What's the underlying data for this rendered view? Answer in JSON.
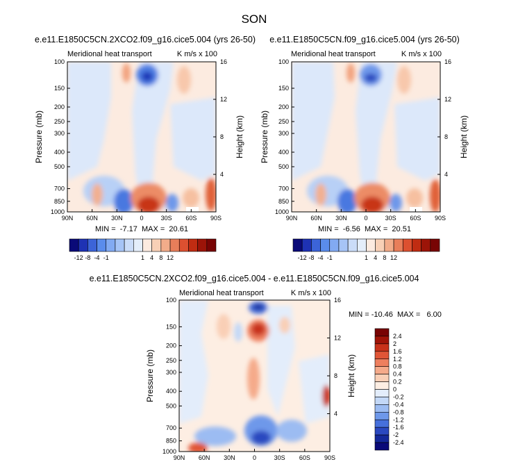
{
  "page_title": "SON",
  "chart_data": [
    {
      "type": "heatmap",
      "title": "e.e11.E1850C5CN.2XCO2.f09_g16.cice5.004 (yrs 26-50)",
      "left_label": "Meridional heat transport",
      "units_label": "K m/s x 100",
      "xlabel": "",
      "ylabel": "Pressure (mb)",
      "ylabel_right": "Height (km)",
      "x_ticks": [
        "90N",
        "60N",
        "30N",
        "0",
        "30S",
        "60S",
        "90S"
      ],
      "y_ticks": [
        "100",
        "150",
        "200",
        "250",
        "300",
        "400",
        "500",
        "700",
        "850",
        "1000"
      ],
      "y_right_ticks": [
        "16",
        "12",
        "8",
        "4"
      ],
      "stats_label": "MIN =  -7.17  MAX =  20.61",
      "colorbar_labels": [
        "-12",
        "-8",
        "-4",
        "-1",
        "1",
        "4",
        "8",
        "12"
      ],
      "colorbar_colors": [
        "#0a0a78",
        "#1e32b4",
        "#3c64d8",
        "#5a8cec",
        "#82aaf2",
        "#a6c4f6",
        "#cadcf8",
        "#e4eefa",
        "#fcebe0",
        "#f8d0b6",
        "#f2ac8a",
        "#e87e5a",
        "#dc5030",
        "#c02c12",
        "#9c1408",
        "#780404"
      ]
    },
    {
      "type": "heatmap",
      "title": "e.e11.E1850C5CN.f09_g16.cice5.004 (yrs 26-50)",
      "left_label": "Meridional heat transport",
      "units_label": "K m/s x 100",
      "xlabel": "",
      "ylabel": "Pressure (mb)",
      "ylabel_right": "Height (km)",
      "x_ticks": [
        "90N",
        "60N",
        "30N",
        "0",
        "30S",
        "60S",
        "90S"
      ],
      "y_ticks": [
        "100",
        "150",
        "200",
        "250",
        "300",
        "400",
        "500",
        "700",
        "850",
        "1000"
      ],
      "y_right_ticks": [
        "16",
        "12",
        "8",
        "4"
      ],
      "stats_label": "MIN =  -6.56  MAX =  20.51",
      "colorbar_labels": [
        "-12",
        "-8",
        "-4",
        "-1",
        "1",
        "4",
        "8",
        "12"
      ],
      "colorbar_colors": [
        "#0a0a78",
        "#1e32b4",
        "#3c64d8",
        "#5a8cec",
        "#82aaf2",
        "#a6c4f6",
        "#cadcf8",
        "#e4eefa",
        "#fcebe0",
        "#f8d0b6",
        "#f2ac8a",
        "#e87e5a",
        "#dc5030",
        "#c02c12",
        "#9c1408",
        "#780404"
      ]
    },
    {
      "type": "heatmap",
      "title": "e.e11.E1850C5CN.2XCO2.f09_g16.cice5.004 - e.e11.E1850C5CN.f09_g16.cice5.004",
      "left_label": "Meridional heat transport",
      "units_label": "K m/s x 100",
      "xlabel": "",
      "ylabel": "Pressure (mb)",
      "ylabel_right": "Height (km)",
      "x_ticks": [
        "90N",
        "60N",
        "30N",
        "0",
        "30S",
        "60S",
        "90S"
      ],
      "y_ticks": [
        "100",
        "150",
        "200",
        "250",
        "300",
        "400",
        "500",
        "700",
        "850",
        "1000"
      ],
      "y_right_ticks": [
        "16",
        "12",
        "8",
        "4"
      ],
      "stats_label": "MIN = -10.46  MAX =   6.00",
      "colorbar_labels": [
        "2.4",
        "2",
        "1.6",
        "1.2",
        "0.8",
        "0.4",
        "0.2",
        "0",
        "-0.2",
        "-0.4",
        "-0.8",
        "-1.2",
        "-1.6",
        "-2",
        "-2.4"
      ],
      "colorbar_colors": [
        "#780404",
        "#a01408",
        "#c8321a",
        "#e05536",
        "#ee7f5e",
        "#f5aa8a",
        "#f9cfb6",
        "#fdeee3",
        "#e3edfb",
        "#c3d8f7",
        "#9cbcf2",
        "#6e98ea",
        "#4670dc",
        "#2a48c0",
        "#14289a",
        "#0a0a78"
      ]
    }
  ]
}
